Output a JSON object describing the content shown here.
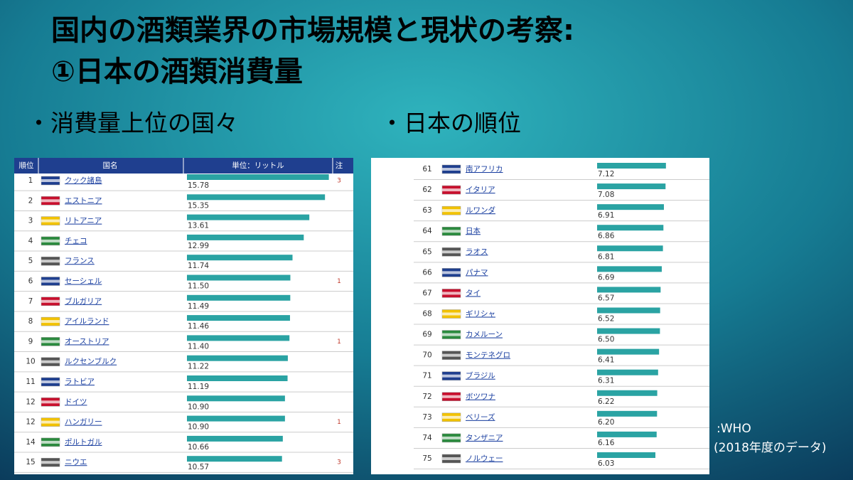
{
  "slide": {
    "title_lines": [
      "国内の酒類業界の市場規模と現状の考察:",
      "①日本の酒類消費量"
    ],
    "bullets": [
      "・消費量上位の国々",
      "・日本の順位"
    ],
    "source_lines": [
      ":WHO",
      "(2018年度のデータ)"
    ]
  },
  "top_table": {
    "header": [
      "順位",
      "国名",
      "単位：リットル",
      "注"
    ],
    "rows": [
      {
        "rank": 1,
        "country": "クック諸島",
        "value": 15.78,
        "note": 3
      },
      {
        "rank": 2,
        "country": "エストニア",
        "value": 15.35
      },
      {
        "rank": 3,
        "country": "リトアニア",
        "value": 13.61
      },
      {
        "rank": 4,
        "country": "チェコ",
        "value": 12.99
      },
      {
        "rank": 5,
        "country": "フランス",
        "value": 11.74
      },
      {
        "rank": 6,
        "country": "セーシェル",
        "value": 11.5,
        "value_label": "11.50",
        "note": 1
      },
      {
        "rank": 7,
        "country": "ブルガリア",
        "value": 11.49
      },
      {
        "rank": 8,
        "country": "アイルランド",
        "value": 11.46
      },
      {
        "rank": 9,
        "country": "オーストリア",
        "value": 11.4,
        "value_label": "11.40",
        "note": 1
      },
      {
        "rank": 10,
        "country": "ルクセンブルク",
        "value": 11.22
      },
      {
        "rank": 11,
        "country": "ラトビア",
        "value": 11.19
      },
      {
        "rank": 12,
        "country": "ドイツ",
        "value": 10.9,
        "value_label": "10.90"
      },
      {
        "rank": 12,
        "country": "ハンガリー",
        "value": 10.9,
        "value_label": "10.90",
        "note": 1
      },
      {
        "rank": 14,
        "country": "ポルトガル",
        "value": 10.66
      },
      {
        "rank": 15,
        "country": "ニウエ",
        "value": 10.57,
        "note": 3
      }
    ]
  },
  "japan_table": {
    "rows": [
      {
        "rank": 61,
        "country": "南アフリカ",
        "value": 7.12
      },
      {
        "rank": 62,
        "country": "イタリア",
        "value": 7.08
      },
      {
        "rank": 63,
        "country": "ルワンダ",
        "value": 6.91
      },
      {
        "rank": 64,
        "country": "日本",
        "value": 6.86
      },
      {
        "rank": 65,
        "country": "ラオス",
        "value": 6.81
      },
      {
        "rank": 66,
        "country": "パナマ",
        "value": 6.69
      },
      {
        "rank": 67,
        "country": "タイ",
        "value": 6.57
      },
      {
        "rank": 68,
        "country": "ギリシャ",
        "value": 6.52
      },
      {
        "rank": 69,
        "country": "カメルーン",
        "value": 6.5,
        "value_label": "6.50"
      },
      {
        "rank": 70,
        "country": "モンテネグロ",
        "value": 6.41
      },
      {
        "rank": 71,
        "country": "ブラジル",
        "value": 6.31
      },
      {
        "rank": 72,
        "country": "ボツワナ",
        "value": 6.22
      },
      {
        "rank": 73,
        "country": "ベリーズ",
        "value": 6.2,
        "value_label": "6.20"
      },
      {
        "rank": 74,
        "country": "タンザニア",
        "value": 6.16
      },
      {
        "rank": 75,
        "country": "ノルウェー",
        "value": 6.03
      }
    ]
  }
}
